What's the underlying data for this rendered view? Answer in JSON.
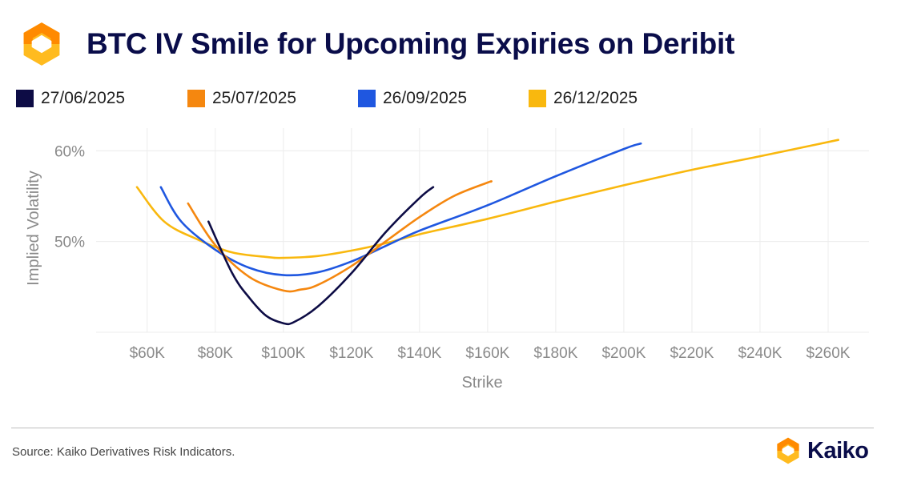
{
  "header": {
    "title": "BTC IV Smile for Upcoming Expiries on Deribit"
  },
  "brand": {
    "name": "Kaiko",
    "colors": {
      "orange": "#ff8a00",
      "yellow": "#ffbb1f",
      "navy": "#0a0d4a"
    },
    "logo_icon": "kaiko-logo-icon"
  },
  "footer": {
    "source": "Source: Kaiko Derivatives Risk Indicators."
  },
  "chart_data": {
    "type": "line",
    "xlabel": "Strike",
    "ylabel": "Implied Volatility",
    "xlim": [
      45000,
      272000
    ],
    "ylim": [
      40,
      62.5
    ],
    "x_ticks": [
      60000,
      80000,
      100000,
      120000,
      140000,
      160000,
      180000,
      200000,
      220000,
      240000,
      260000
    ],
    "x_tick_labels": [
      "$60K",
      "$80K",
      "$100K",
      "$120K",
      "$140K",
      "$160K",
      "$180K",
      "$200K",
      "$220K",
      "$240K",
      "$260K"
    ],
    "y_ticks": [
      50,
      60
    ],
    "y_tick_labels": [
      "50%",
      "60%"
    ],
    "grid": true,
    "legend_position": "top-left",
    "series": [
      {
        "name": "27/06/2025",
        "color": "#0d0c45",
        "x": [
          78000,
          85000,
          90000,
          95000,
          100000,
          103000,
          110000,
          120000,
          130000,
          140000,
          144000
        ],
        "y": [
          52.2,
          46.5,
          43.8,
          41.8,
          41.0,
          41.1,
          42.8,
          46.5,
          51.0,
          54.8,
          56.0
        ]
      },
      {
        "name": "25/07/2025",
        "color": "#f5870f",
        "x": [
          72000,
          80000,
          90000,
          100000,
          105000,
          110000,
          120000,
          130000,
          140000,
          150000,
          160000,
          161000
        ],
        "y": [
          54.2,
          49.6,
          46.1,
          44.6,
          44.7,
          45.2,
          47.3,
          50.0,
          52.7,
          55.0,
          56.5,
          56.6
        ]
      },
      {
        "name": "26/09/2025",
        "color": "#1f57e0",
        "x": [
          64000,
          70000,
          80000,
          90000,
          100000,
          110000,
          120000,
          130000,
          140000,
          160000,
          180000,
          200000,
          205000
        ],
        "y": [
          56.0,
          52.2,
          49.1,
          47.1,
          46.3,
          46.6,
          47.8,
          49.5,
          51.2,
          54.0,
          57.2,
          60.2,
          60.8
        ]
      },
      {
        "name": "26/12/2025",
        "color": "#f9b80e",
        "x": [
          57000,
          65000,
          75000,
          85000,
          95000,
          100000,
          110000,
          120000,
          130000,
          140000,
          160000,
          180000,
          200000,
          220000,
          240000,
          263000
        ],
        "y": [
          56.0,
          52.2,
          50.2,
          48.8,
          48.3,
          48.2,
          48.4,
          49.0,
          49.8,
          50.8,
          52.5,
          54.4,
          56.2,
          57.9,
          59.4,
          61.2
        ]
      }
    ]
  }
}
